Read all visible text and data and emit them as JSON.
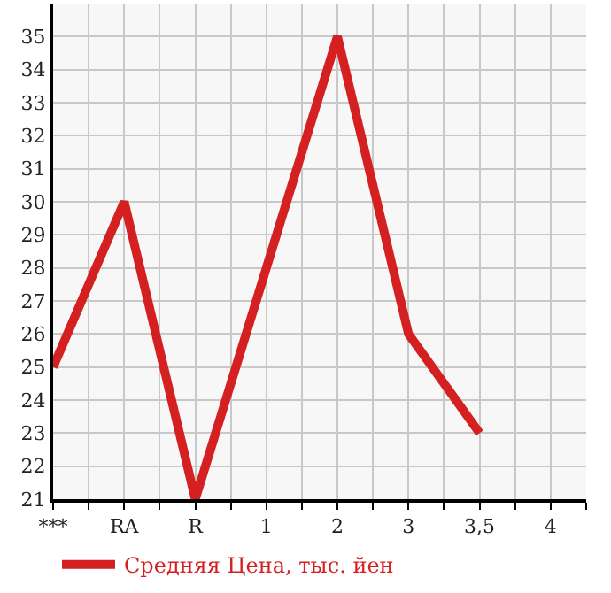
{
  "chart_data": {
    "type": "line",
    "categories": [
      "***",
      "RA",
      "R",
      "1",
      "2",
      "3",
      "3,5",
      "4"
    ],
    "series": [
      {
        "name": "Средняя Цена, тыс. йен",
        "color": "#d42020",
        "values": [
          25,
          30,
          21,
          28,
          35,
          26,
          23,
          null
        ]
      }
    ],
    "ylim": [
      21,
      36
    ],
    "yticks": [
      21,
      22,
      23,
      24,
      25,
      26,
      27,
      28,
      29,
      30,
      31,
      32,
      33,
      34,
      35
    ],
    "grid": true,
    "legend": "bottom",
    "marker": "none",
    "line_style": "solid"
  }
}
